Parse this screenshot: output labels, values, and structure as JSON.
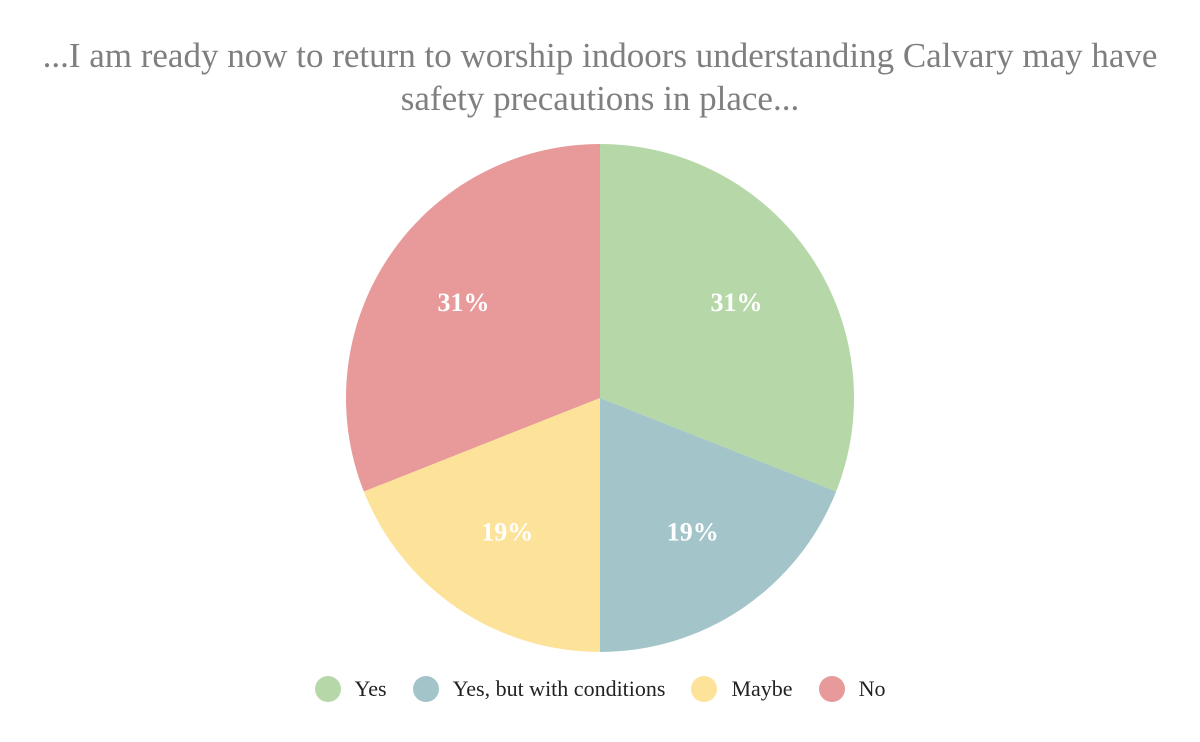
{
  "chart_data": {
    "type": "pie",
    "title": "...I am ready now to return to worship indoors understanding Calvary may have safety precautions in place...",
    "categories": [
      "Yes",
      "Yes, but with conditions",
      "Maybe",
      "No"
    ],
    "values": [
      31,
      19,
      19,
      31
    ],
    "value_labels": [
      "31%",
      "19%",
      "19%",
      "31%"
    ],
    "colors": [
      "#b6d8a8",
      "#a3c4c9",
      "#fde399",
      "#e89999"
    ],
    "legend_position": "bottom",
    "start_angle": "12 o'clock, clockwise"
  }
}
